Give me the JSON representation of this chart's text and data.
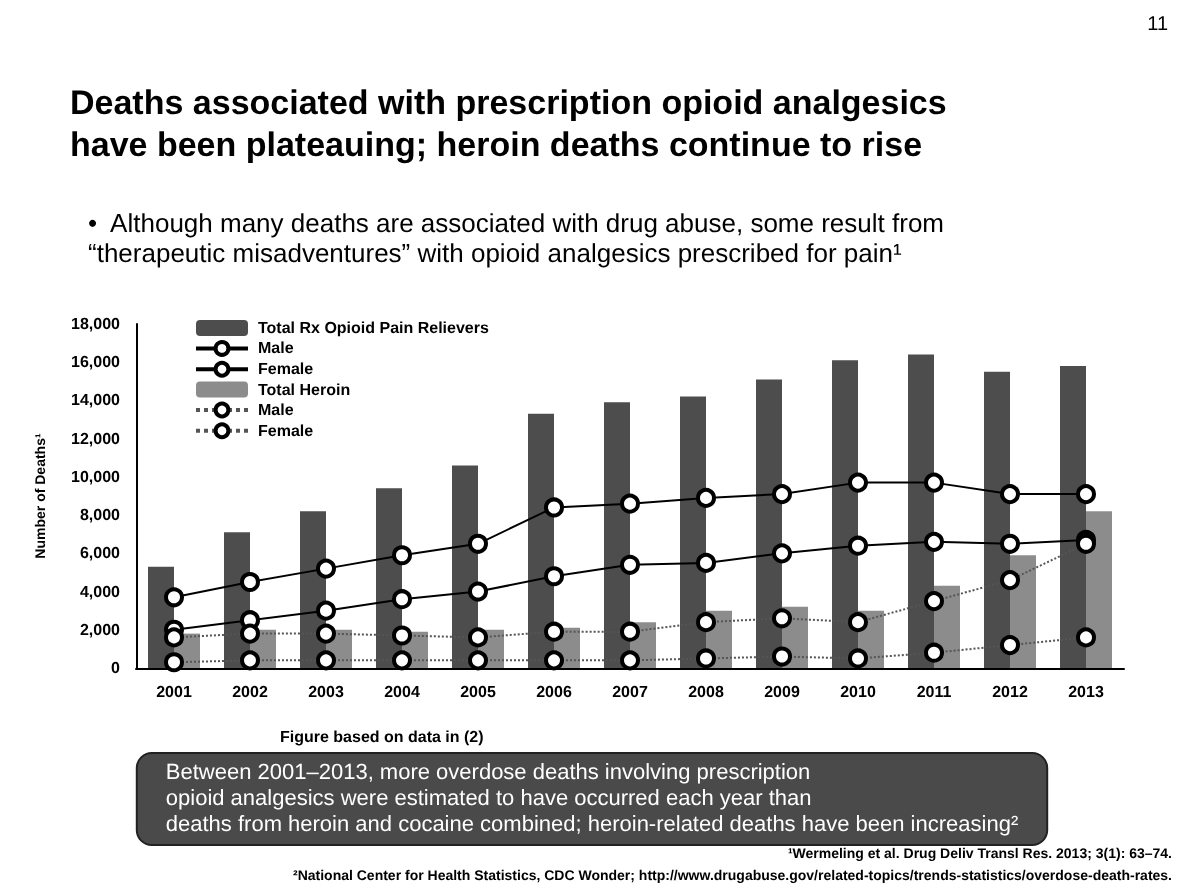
{
  "chart_data": {
    "type": "bar",
    "title": "Deaths associated with prescription opioid analgesics have been plateauing; heroin deaths continue to rise",
    "subtitle": "•  Although many deaths are associated with drug abuse, some result from “therapeutic misadventures” with opioid analgesics prescribed for pain¹",
    "ylabel": "Number of Deaths¹",
    "categories": [
      "2001",
      "2002",
      "2003",
      "2004",
      "2005",
      "2006",
      "2007",
      "2008",
      "2009",
      "2010",
      "2011",
      "2012",
      "2013"
    ],
    "series": [
      {
        "name": "Total Rx Opioid Pain Relievers",
        "type": "bar",
        "color": "#4d4d4d",
        "values": [
          5300,
          7100,
          8200,
          9400,
          10600,
          13300,
          13900,
          14200,
          15100,
          16100,
          16400,
          15500,
          15800
        ]
      },
      {
        "name": "Male",
        "type": "line",
        "color": "#000000",
        "line_style": "solid",
        "values": [
          3700,
          4500,
          5200,
          5900,
          6500,
          8400,
          8600,
          8900,
          9100,
          9700,
          9700,
          9100,
          9100
        ]
      },
      {
        "name": "Female",
        "type": "line",
        "color": "#000000",
        "line_style": "solid",
        "values": [
          2000,
          2500,
          3000,
          3600,
          4000,
          4800,
          5400,
          5500,
          6000,
          6400,
          6600,
          6500,
          6700
        ]
      },
      {
        "name": "Total Heroin",
        "type": "bar",
        "color": "#8c8c8c",
        "values": [
          1800,
          2000,
          2000,
          1900,
          2000,
          2100,
          2400,
          3000,
          3200,
          3000,
          4300,
          5900,
          8200
        ]
      },
      {
        "name": "Male",
        "type": "line",
        "color": "#555555",
        "line_style": "dotted",
        "values": [
          1600,
          1800,
          1800,
          1700,
          1600,
          1900,
          1900,
          2400,
          2600,
          2400,
          3500,
          4600,
          6500
        ]
      },
      {
        "name": "Female",
        "type": "line",
        "color": "#555555",
        "line_style": "dotted",
        "values": [
          300,
          400,
          400,
          400,
          400,
          400,
          400,
          500,
          600,
          500,
          800,
          1200,
          1600
        ]
      }
    ],
    "ylim": [
      0,
      18000
    ],
    "yticks": [
      0,
      {
        "value": 2000,
        "label": "2,000"
      },
      {
        "value": 4000,
        "label": "4,000"
      },
      {
        "value": 6000,
        "label": "6,000"
      },
      {
        "value": 8000,
        "label": "8,000"
      },
      {
        "value": 10000,
        "label": "10,000"
      },
      {
        "value": 12000,
        "label": "12,000"
      },
      {
        "value": 14000,
        "label": "14,000"
      },
      {
        "value": 16000,
        "label": "16,000"
      },
      {
        "value": 18000,
        "label": "18,000"
      }
    ],
    "grid": false,
    "legend": "top left",
    "marker": "circle",
    "annotations": [
      "11",
      "Figure based on data in (2)",
      "Between 2001–2013, more overdose deaths involving prescription\nopioid analgesics were estimated to have occurred each year than\ndeaths from heroin and cocaine combined; heroin-related deaths have been increasing²",
      "¹Wermeling et al. Drug Deliv Transl Res. 2013; 3(1): 63–74.",
      "²National Center for Health Statistics, CDC Wonder; http://www.drugabuse.gov/related-topics/trends-statistics/overdose-death-rates."
    ]
  }
}
